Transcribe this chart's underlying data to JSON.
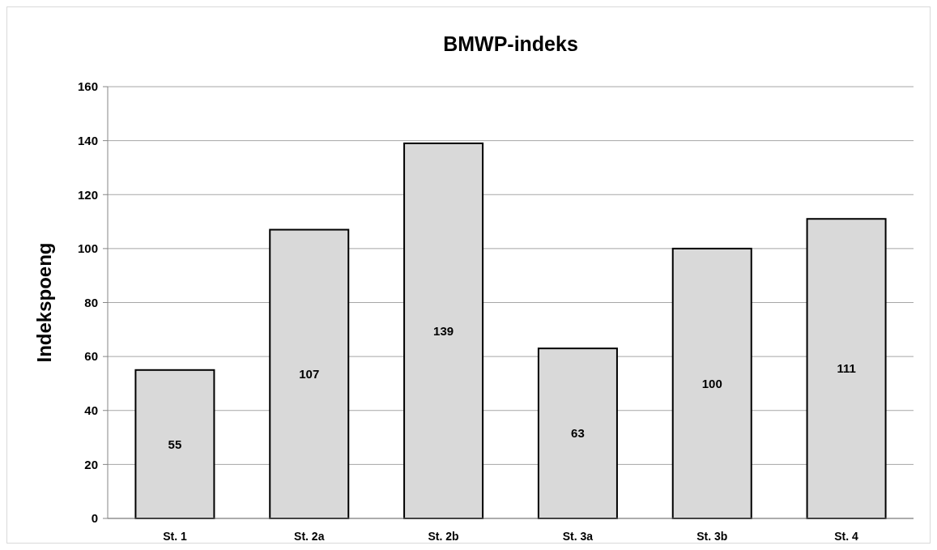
{
  "chart_data": {
    "type": "bar",
    "title": "BMWP-indeks",
    "ylabel": "Indekspoeng",
    "categories": [
      "St. 1",
      "St. 2a",
      "St. 2b",
      "St. 3a",
      "St. 3b",
      "St. 4"
    ],
    "values": [
      55,
      107,
      139,
      63,
      100,
      111
    ],
    "color": "#d9d9d9",
    "ylim": [
      0,
      160
    ],
    "yticks": [
      0,
      20,
      40,
      60,
      80,
      100,
      120,
      140,
      160
    ],
    "grid": "y",
    "data_labels": true
  }
}
